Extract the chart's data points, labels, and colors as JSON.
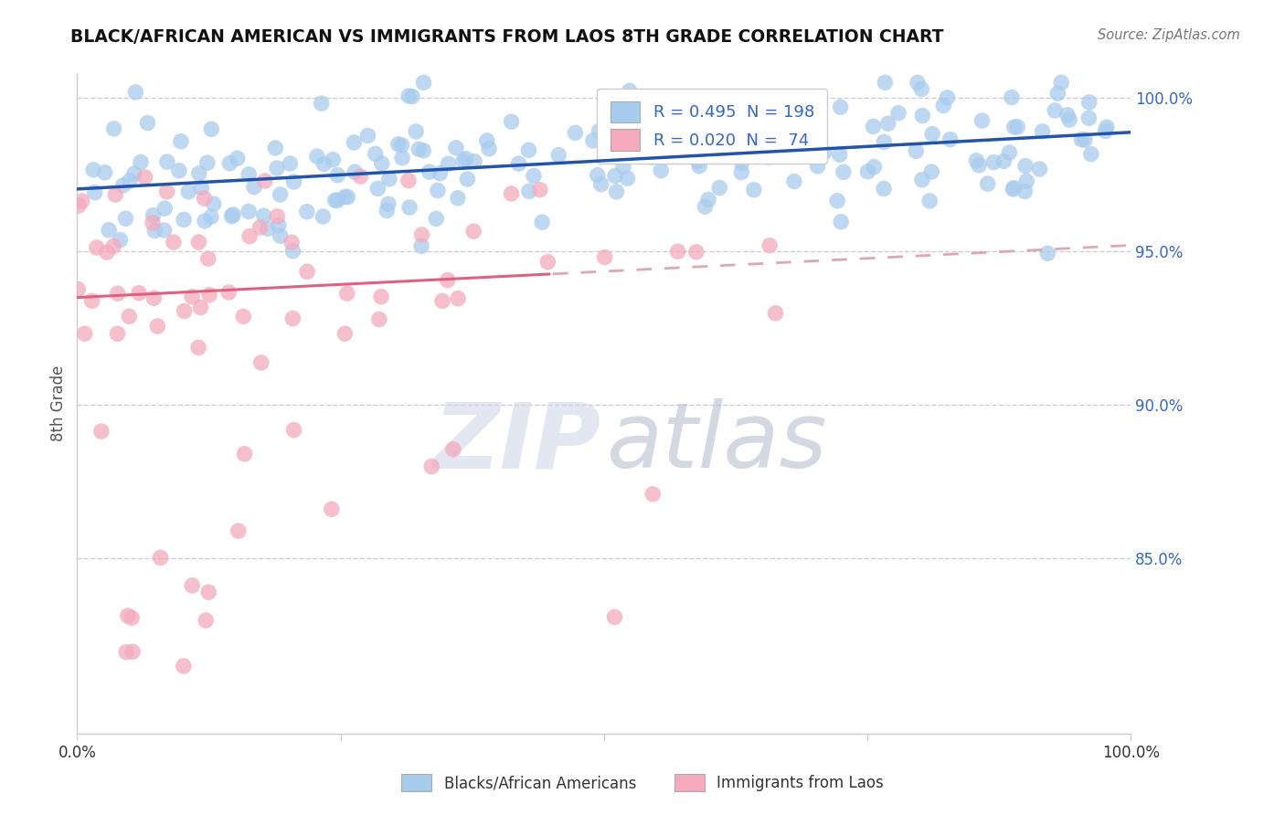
{
  "title": "BLACK/AFRICAN AMERICAN VS IMMIGRANTS FROM LAOS 8TH GRADE CORRELATION CHART",
  "source": "Source: ZipAtlas.com",
  "ylabel": "8th Grade",
  "blue_R": "0.495",
  "blue_N": "198",
  "pink_R": "0.020",
  "pink_N": "74",
  "yticks": [
    "85.0%",
    "90.0%",
    "95.0%",
    "100.0%"
  ],
  "ytick_values": [
    0.85,
    0.9,
    0.95,
    1.0
  ],
  "xlim": [
    0.0,
    1.0
  ],
  "ylim": [
    0.793,
    1.008
  ],
  "blue_color": "#A8CCEE",
  "blue_line_color": "#2255AA",
  "pink_color": "#F4AABC",
  "pink_line_color": "#E06080",
  "pink_dashed_color": "#DDA8B0",
  "watermark_zip_color": "#D0D8E8",
  "watermark_atlas_color": "#B0B8CC",
  "background_color": "#FFFFFF",
  "title_color": "#111111",
  "source_color": "#777777",
  "ytick_color": "#3366CC",
  "xtick_color": "#333333",
  "ylabel_color": "#555555",
  "legend_text_color": "#3366CC",
  "grid_color": "#CCCCDD",
  "spine_color": "#CCCCCC"
}
